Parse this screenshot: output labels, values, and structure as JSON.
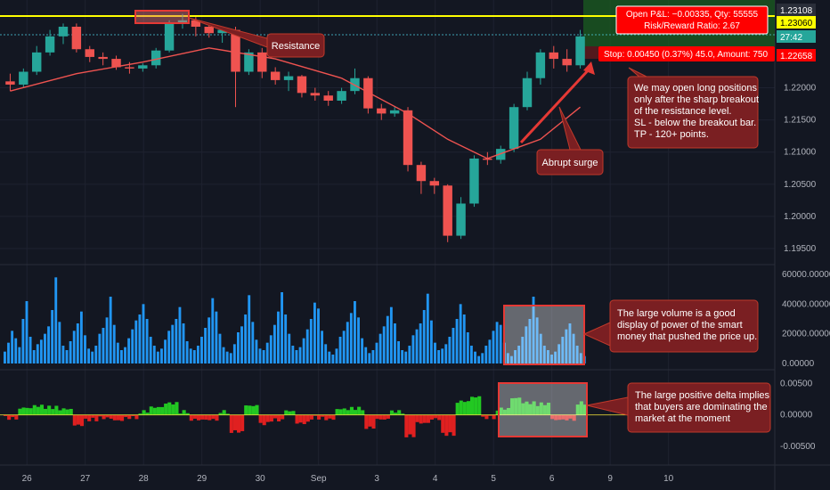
{
  "chart_data": [
    {
      "type": "candlestick",
      "pane": "price",
      "ylim": [
        1.1932,
        1.2331
      ],
      "y_ticks": [
        "1.22000",
        "1.21500",
        "1.21000",
        "1.20500",
        "1.20000",
        "1.19500"
      ],
      "y_tick_values": [
        1.22,
        1.215,
        1.21,
        1.205,
        1.2,
        1.195
      ],
      "ohlc_series": [
        {
          "name": "price",
          "values": [
            [
              1.221,
              1.2222,
              1.2195,
              1.2205
            ],
            [
              1.2205,
              1.223,
              1.22,
              1.2225
            ],
            [
              1.2225,
              1.2265,
              1.222,
              1.2255
            ],
            [
              1.2255,
              1.229,
              1.225,
              1.228
            ],
            [
              1.228,
              1.23,
              1.2268,
              1.2295
            ],
            [
              1.2295,
              1.23,
              1.2255,
              1.226
            ],
            [
              1.226,
              1.2265,
              1.224,
              1.2248
            ],
            [
              1.2248,
              1.2255,
              1.2235,
              1.2245
            ],
            [
              1.2245,
              1.225,
              1.2228,
              1.2232
            ],
            [
              1.2232,
              1.224,
              1.2222,
              1.223
            ],
            [
              1.223,
              1.2238,
              1.2225,
              1.2235
            ],
            [
              1.2235,
              1.2262,
              1.223,
              1.2258
            ],
            [
              1.2258,
              1.2305,
              1.2255,
              1.23
            ],
            [
              1.23,
              1.2315,
              1.2292,
              1.2305
            ],
            [
              1.2305,
              1.231,
              1.228,
              1.2295
            ],
            [
              1.2295,
              1.23,
              1.2278,
              1.2285
            ],
            [
              1.2285,
              1.2295,
              1.227,
              1.229
            ],
            [
              1.229,
              1.2295,
              1.217,
              1.2225
            ],
            [
              1.2225,
              1.226,
              1.222,
              1.2255
            ],
            [
              1.2255,
              1.2262,
              1.2215,
              1.2225
            ],
            [
              1.2225,
              1.2232,
              1.2205,
              1.2212
            ],
            [
              1.2212,
              1.2225,
              1.2195,
              1.2218
            ],
            [
              1.2218,
              1.222,
              1.2185,
              1.2192
            ],
            [
              1.2192,
              1.22,
              1.218,
              1.2188
            ],
            [
              1.2188,
              1.2195,
              1.2172,
              1.218
            ],
            [
              1.218,
              1.22,
              1.2175,
              1.2195
            ],
            [
              1.2195,
              1.223,
              1.219,
              1.2215
            ],
            [
              1.2215,
              1.2218,
              1.216,
              1.2168
            ],
            [
              1.2168,
              1.2175,
              1.215,
              1.216
            ],
            [
              1.216,
              1.217,
              1.2155,
              1.2165
            ],
            [
              1.2165,
              1.217,
              1.207,
              1.208
            ],
            [
              1.208,
              1.2085,
              1.2035,
              1.2055
            ],
            [
              1.2055,
              1.206,
              1.2035,
              1.2048
            ],
            [
              1.2048,
              1.205,
              1.196,
              1.197
            ],
            [
              1.197,
              1.203,
              1.1965,
              1.202
            ],
            [
              1.202,
              1.2095,
              1.2015,
              1.209
            ],
            [
              1.209,
              1.21,
              1.208,
              1.2088
            ],
            [
              1.2088,
              1.211,
              1.2082,
              1.2105
            ],
            [
              1.2105,
              1.2175,
              1.21,
              1.217
            ],
            [
              1.217,
              1.2225,
              1.2165,
              1.2215
            ],
            [
              1.2215,
              1.226,
              1.2205,
              1.2255
            ],
            [
              1.2255,
              1.2265,
              1.223,
              1.2245
            ],
            [
              1.2245,
              1.226,
              1.2225,
              1.2235
            ],
            [
              1.2235,
              1.229,
              1.223,
              1.228
            ]
          ]
        }
      ],
      "series": [
        {
          "name": "MA",
          "x": [
            0,
            5,
            10,
            15,
            20,
            25,
            30,
            33,
            36,
            40,
            43
          ],
          "values": [
            1.2195,
            1.2222,
            1.224,
            1.2262,
            1.2245,
            1.2215,
            1.216,
            1.212,
            1.209,
            1.212,
            1.217
          ]
        }
      ],
      "levels": [
        {
          "label": "1.23108",
          "value": 1.23108,
          "color": "#ffff00"
        },
        {
          "label": "1.23060",
          "value": 1.2306,
          "color": "#ffff00"
        },
        {
          "label": "27:42",
          "value": 1.2302,
          "color": "#26a69a"
        },
        {
          "label": "1.22658",
          "value": 1.22658,
          "color": "#ff0000"
        }
      ]
    },
    {
      "type": "bar",
      "pane": "volume",
      "ylim": [
        0,
        60000
      ],
      "y_ticks": [
        "60000.00000",
        "40000.00000",
        "20000.00000",
        "0.00000"
      ],
      "y_tick_values": [
        60000,
        40000,
        20000,
        0
      ],
      "values": [
        8000,
        14000,
        22000,
        17000,
        11000,
        30000,
        42000,
        18000,
        9000,
        13000,
        16000,
        20000,
        25000,
        36000,
        58000,
        28000,
        12000,
        9000,
        15000,
        22000,
        27000,
        35000,
        19000,
        10000,
        8000,
        12000,
        20000,
        24000,
        31000,
        45000,
        26000,
        14000,
        9000,
        11000,
        17000,
        23000,
        29000,
        33000,
        40000,
        30000,
        18000,
        12000,
        8000,
        10000,
        16000,
        22000,
        26000,
        30000,
        38000,
        27000,
        15000,
        10000,
        9000,
        12000,
        18000,
        24000,
        31000,
        44000,
        35000,
        20000,
        11000,
        8000,
        7000,
        13000,
        21000,
        25000,
        33000,
        46000,
        28000,
        16000,
        10000,
        9000,
        14000,
        19000,
        26000,
        35000,
        48000,
        33000,
        20000,
        12000,
        9000,
        11000,
        17000,
        23000,
        30000,
        41000,
        37000,
        22000,
        13000,
        8000,
        6000,
        10000,
        18000,
        22000,
        28000,
        34000,
        42000,
        31000,
        17000,
        11000,
        7000,
        9000,
        14000,
        20000,
        25000,
        32000,
        38000,
        27000,
        15000,
        9000,
        8000,
        12000,
        19000,
        23000,
        27000,
        36000,
        47000,
        29000,
        14000,
        9000,
        10000,
        13000,
        18000,
        24000,
        30000,
        40000,
        33000,
        21000,
        12000,
        8000,
        5000,
        7000,
        12000,
        16000,
        22000,
        28000,
        26000,
        14000,
        7000,
        5000,
        9000,
        12000,
        18000,
        25000,
        30000,
        45000,
        31000,
        20000,
        12000,
        9000,
        6000,
        8000,
        13000,
        18000,
        23000,
        27000,
        20000,
        12000,
        7000,
        5000
      ]
    },
    {
      "type": "area",
      "pane": "delta",
      "ylim": [
        -0.007,
        0.0065
      ],
      "y_ticks": [
        "0.00500",
        "0.00000",
        "-0.00500"
      ],
      "y_tick_values": [
        0.005,
        0,
        -0.005
      ]
    }
  ],
  "x_axis": {
    "labels": [
      "26",
      "27",
      "28",
      "29",
      "30",
      "Sep",
      "3",
      "4",
      "5",
      "6",
      "9",
      "10"
    ],
    "label_bars": [
      2,
      7,
      12,
      17,
      22,
      27,
      32,
      37,
      42,
      47,
      52,
      57
    ]
  },
  "annotations": [
    {
      "id": "resistance",
      "lines": [
        "Resistance"
      ]
    },
    {
      "id": "surge",
      "lines": [
        "Abrupt surge"
      ]
    },
    {
      "id": "long",
      "lines": [
        "We may open long positions",
        "only after the sharp breakout",
        "of the resistance level.",
        "SL - below the breakout bar.",
        "TP - 120+ points."
      ]
    },
    {
      "id": "volume",
      "lines": [
        "The large volume is a good",
        "display of power of the smart",
        "money that pushed the price up."
      ]
    },
    {
      "id": "delta",
      "lines": [
        "The large positive delta implies",
        "that buyers are dominating the",
        "market at the moment"
      ]
    }
  ],
  "trade_box": {
    "pnl_line": "Open P&L: −0.00335, Qty: 55555",
    "rr_line": "Risk/Reward Ratio: 2.67",
    "stop_line": "Stop: 0.00450 (0.37%) 45.0, Amount: 750"
  },
  "colors": {
    "background": "#131722",
    "grid": "#1e2230",
    "up": "#26a69a",
    "down": "#ef5350",
    "ma": "#ef5350",
    "volume": "#2196f3",
    "delta_up": "#22c822",
    "delta_down": "#e02020",
    "annotation_fill": "#7a1f22",
    "annotation_border": "#c0392b",
    "resistance_line": "#ffff00",
    "stop_badge": "#ff0000",
    "target_zone": "#1b5e20"
  }
}
